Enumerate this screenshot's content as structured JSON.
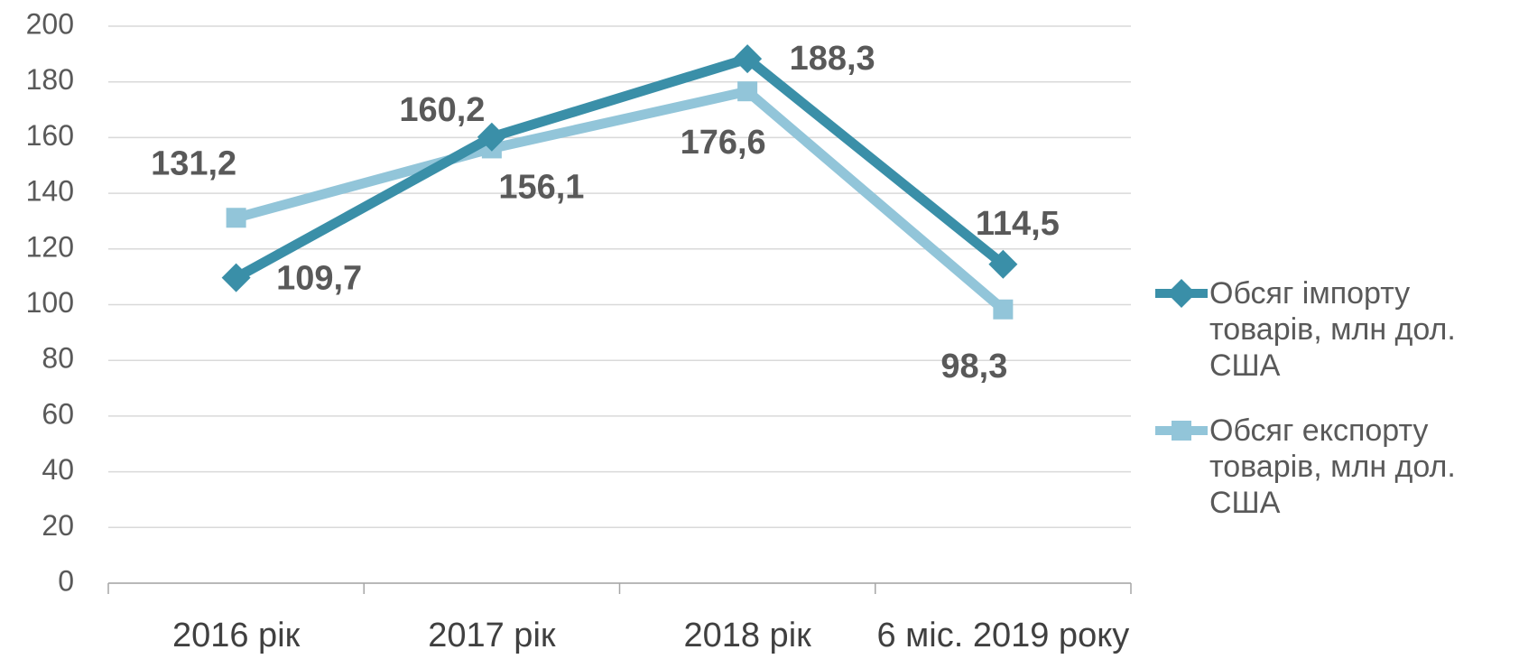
{
  "chart_data": {
    "type": "line",
    "categories": [
      "2016 рік",
      "2017 рік",
      "2018 рік",
      "6 міс. 2019 року"
    ],
    "series": [
      {
        "name": "Обсяг імпорту товарів, млн дол. США",
        "color": "#3a8fa8",
        "marker": "diamond",
        "values": [
          109.7,
          160.2,
          188.3,
          114.5
        ],
        "value_labels": [
          "109,7",
          "160,2",
          "188,3",
          "114,5"
        ]
      },
      {
        "name": "Обсяг експорту товарів, млн дол. США",
        "color": "#92c5d9",
        "marker": "square",
        "values": [
          131.2,
          156.1,
          176.6,
          98.3
        ],
        "value_labels": [
          "131,2",
          "156,1",
          "176,6",
          "98,3"
        ]
      }
    ],
    "ylim": [
      0,
      200
    ],
    "yticks": [
      0,
      20,
      40,
      60,
      80,
      100,
      120,
      140,
      160,
      180,
      200
    ],
    "grid": true,
    "legend": "right"
  }
}
